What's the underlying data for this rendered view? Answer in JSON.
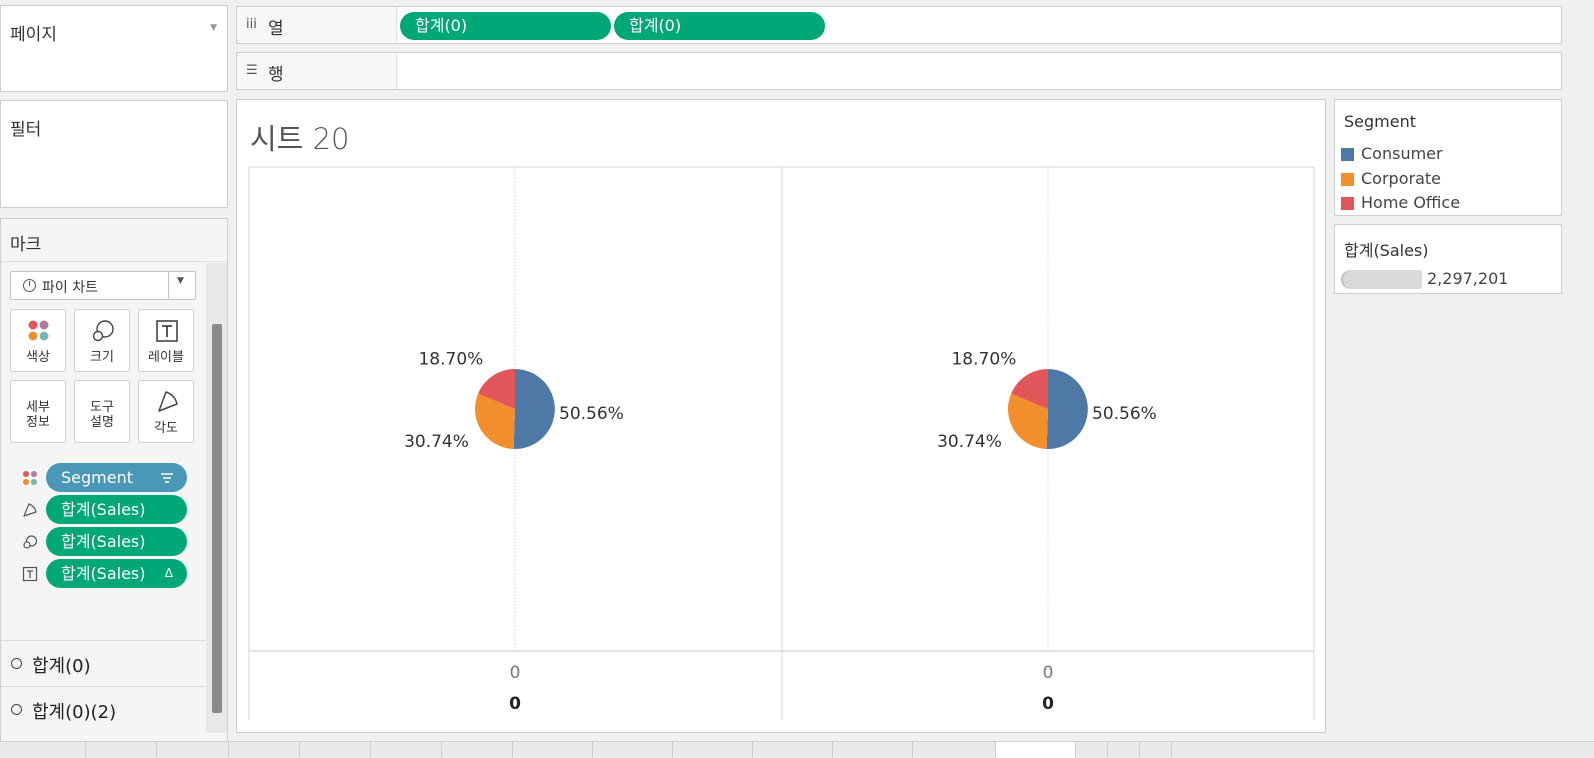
{
  "pages": {
    "title": "페이지"
  },
  "filters": {
    "title": "필터"
  },
  "marks": {
    "title": "마크",
    "mark_type": "파이 차트",
    "buttons": {
      "color": "색상",
      "size": "크기",
      "label": "레이블",
      "detail_1": "세부",
      "detail_2": "정보",
      "tooltip_1": "도구",
      "tooltip_2": "설명",
      "angle": "각도"
    },
    "pills": [
      {
        "text": "Segment",
        "icon": "color-icon",
        "tag": "sort-icon"
      },
      {
        "text": "합계(Sales)",
        "icon": "angle-icon",
        "tag": ""
      },
      {
        "text": "합계(Sales)",
        "icon": "size-icon",
        "tag": ""
      },
      {
        "text": "합계(Sales)",
        "icon": "label-icon",
        "tag": "Δ"
      }
    ],
    "sections": [
      {
        "text": "합계(0)"
      },
      {
        "text": "합계(0)(2)"
      }
    ]
  },
  "shelves": {
    "columns_label": "열",
    "rows_label": "행",
    "columns_pills": [
      "합계(0)",
      "합계(0)"
    ]
  },
  "sheet": {
    "title": "시트 20"
  },
  "legend": {
    "title": "Segment",
    "items": [
      {
        "label": "Consumer",
        "color": "#4e79a7"
      },
      {
        "label": "Corporate",
        "color": "#f28e2b"
      },
      {
        "label": "Home Office",
        "color": "#e15759"
      }
    ]
  },
  "size_legend": {
    "title": "합계(Sales)",
    "value": "2,297,201"
  },
  "chart_data": [
    {
      "type": "pie",
      "categories": [
        "Consumer",
        "Corporate",
        "Home Office"
      ],
      "values": [
        50.56,
        30.74,
        18.7
      ],
      "labels": [
        "50.56%",
        "30.74%",
        "18.70%"
      ],
      "colors": [
        "#4e79a7",
        "#f28e2b",
        "#e15759"
      ],
      "x_tick": "0",
      "x_label": "0"
    },
    {
      "type": "pie",
      "categories": [
        "Consumer",
        "Corporate",
        "Home Office"
      ],
      "values": [
        50.56,
        30.74,
        18.7
      ],
      "labels": [
        "50.56%",
        "30.74%",
        "18.70%"
      ],
      "colors": [
        "#4e79a7",
        "#f28e2b",
        "#e15759"
      ],
      "x_tick": "0",
      "x_label": "0"
    }
  ]
}
